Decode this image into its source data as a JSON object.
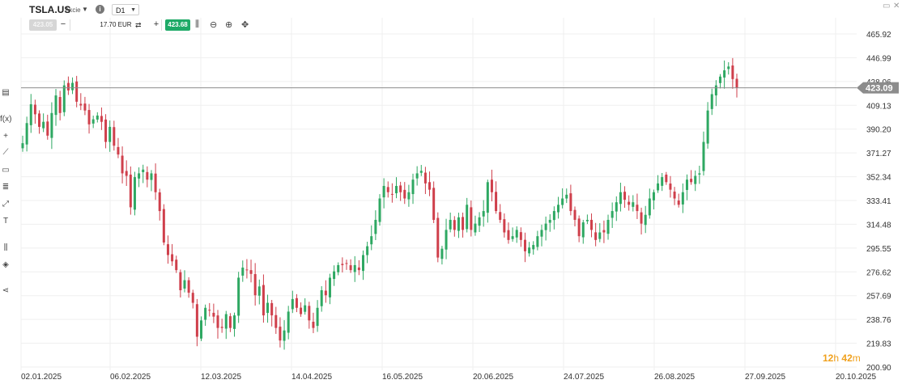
{
  "header": {
    "symbol": "TSLA.US",
    "symbol_type": "Akcie",
    "timeframe": "D1",
    "sell_price": "423.05",
    "amount": "17.70 EUR",
    "buy_price": "423.68"
  },
  "timer": {
    "h": "12",
    "h_unit": "h",
    "m": "42",
    "m_unit": "m"
  },
  "colors": {
    "up": "#2ea862",
    "down": "#cf3f4b",
    "price_tag": "#8c8c8c",
    "buy": "#1eaa67"
  },
  "icons": [
    "info-icon",
    "candles-icon",
    "zoom-out-icon",
    "zoom-in-icon",
    "move-icon",
    "layout-icon",
    "fx-icon",
    "crosshair-icon",
    "line-tool-icon",
    "rectangle-icon",
    "fibonacci-icon",
    "trend-icon",
    "text-tool-icon",
    "indicator-icon",
    "layers-icon",
    "share-icon"
  ],
  "chart_data": {
    "type": "candlestick",
    "y_ticks": [
      "465.92",
      "446.99",
      "428.06",
      "409.13",
      "390.20",
      "371.27",
      "352.34",
      "333.41",
      "314.48",
      "295.55",
      "276.62",
      "257.69",
      "238.76",
      "219.83",
      "200.90"
    ],
    "x_ticks": [
      "02.01.2025",
      "06.02.2025",
      "12.03.2025",
      "14.04.2025",
      "16.05.2025",
      "20.06.2025",
      "24.07.2025",
      "26.08.2025",
      "27.09.2025",
      "20.10.2025"
    ],
    "ylim": [
      200.9,
      465.92
    ],
    "current_price": "423.09",
    "closes": [
      379,
      395,
      410,
      402,
      392,
      396,
      385,
      403,
      417,
      403,
      425,
      421,
      427,
      412,
      409,
      405,
      394,
      398,
      401,
      396,
      380,
      392,
      377,
      370,
      355,
      353,
      328,
      352,
      355,
      358,
      350,
      355,
      340,
      325,
      300,
      290,
      285,
      278,
      262,
      270,
      260,
      252,
      225,
      238,
      248,
      246,
      241,
      232,
      232,
      243,
      232,
      242,
      272,
      280,
      278,
      275,
      258,
      265,
      242,
      252,
      242,
      232,
      222,
      230,
      245,
      255,
      248,
      243,
      250,
      238,
      232,
      248,
      262,
      258,
      272,
      277,
      282,
      282,
      283,
      278,
      282,
      278,
      290,
      297,
      305,
      318,
      335,
      345,
      340,
      338,
      345,
      340,
      335,
      340,
      350,
      355,
      357,
      347,
      342,
      318,
      288,
      295,
      310,
      318,
      310,
      320,
      310,
      330,
      310,
      315,
      320,
      325,
      348,
      340,
      325,
      318,
      308,
      302,
      305,
      310,
      302,
      293,
      296,
      298,
      305,
      310,
      315,
      318,
      325,
      330,
      335,
      338,
      325,
      318,
      305,
      316,
      318,
      310,
      302,
      308,
      308,
      318,
      325,
      332,
      340,
      334,
      330,
      332,
      325,
      315,
      322,
      335,
      340,
      347,
      352,
      348,
      342,
      335,
      330,
      340,
      350,
      348,
      353,
      355,
      380,
      405,
      418,
      425,
      432,
      437,
      440,
      430,
      423
    ]
  }
}
